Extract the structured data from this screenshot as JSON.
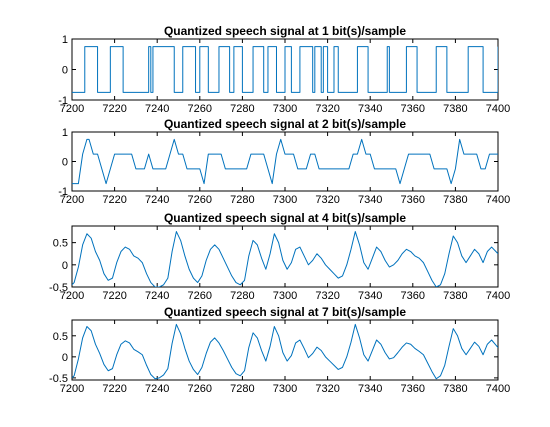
{
  "chart_data": [
    {
      "type": "line",
      "title": "Quantized speech signal at 1 bit(s)/sample",
      "xlabel": "",
      "ylabel": "",
      "xlim": [
        7200,
        7400
      ],
      "ylim": [
        -1,
        1
      ],
      "xticks": [
        7200,
        7220,
        7240,
        7260,
        7280,
        7300,
        7320,
        7340,
        7360,
        7380,
        7400
      ],
      "yticks": [
        -1,
        0,
        1
      ],
      "grid": false,
      "series": [
        {
          "color": "#0072bd",
          "step": true,
          "x": [
            7200,
            7206,
            7212,
            7218,
            7224,
            7236,
            7237,
            7238,
            7248,
            7252,
            7258,
            7260,
            7264,
            7269,
            7274,
            7276,
            7280,
            7285,
            7290,
            7292,
            7296,
            7300,
            7303,
            7307,
            7313,
            7314,
            7317,
            7318,
            7320,
            7323,
            7325,
            7334,
            7339,
            7348,
            7349,
            7357,
            7362,
            7371,
            7376,
            7386,
            7393,
            7400
          ],
          "values": [
            -0.75,
            0.75,
            -0.75,
            0.75,
            -0.75,
            0.75,
            -0.75,
            0.75,
            -0.75,
            0.75,
            -0.75,
            0.75,
            -0.75,
            0.75,
            -0.75,
            0.75,
            -0.75,
            0.75,
            -0.75,
            0.75,
            -0.75,
            0.75,
            -0.75,
            0.75,
            -0.75,
            0.75,
            -0.75,
            0.75,
            -0.75,
            0.75,
            -0.75,
            0.75,
            -0.75,
            0.75,
            -0.75,
            0.75,
            -0.75,
            0.75,
            -0.75,
            0.75,
            -0.75,
            0.75
          ]
        }
      ]
    },
    {
      "type": "line",
      "title": "Quantized speech signal at 2 bit(s)/sample",
      "xlabel": "",
      "ylabel": "",
      "xlim": [
        7200,
        7400
      ],
      "ylim": [
        -1,
        1
      ],
      "xticks": [
        7200,
        7220,
        7240,
        7260,
        7280,
        7300,
        7320,
        7340,
        7360,
        7380,
        7400
      ],
      "yticks": [
        -1,
        0,
        1
      ],
      "grid": false,
      "series": [
        {
          "color": "#0072bd",
          "x": [
            7200,
            7203,
            7205,
            7207,
            7208,
            7210,
            7212,
            7214,
            7216,
            7218,
            7220,
            7222,
            7224,
            7226,
            7228,
            7230,
            7232,
            7234,
            7236,
            7238,
            7240,
            7242,
            7244,
            7246,
            7248,
            7250,
            7252,
            7254,
            7256,
            7258,
            7260,
            7262,
            7264,
            7266,
            7268,
            7270,
            7272,
            7274,
            7276,
            7278,
            7280,
            7282,
            7284,
            7286,
            7288,
            7290,
            7292,
            7294,
            7296,
            7298,
            7300,
            7302,
            7304,
            7306,
            7308,
            7310,
            7312,
            7314,
            7316,
            7318,
            7320,
            7322,
            7324,
            7326,
            7328,
            7330,
            7332,
            7334,
            7336,
            7338,
            7340,
            7342,
            7344,
            7346,
            7348,
            7350,
            7352,
            7354,
            7356,
            7358,
            7360,
            7362,
            7364,
            7366,
            7368,
            7370,
            7372,
            7374,
            7376,
            7378,
            7380,
            7382,
            7384,
            7386,
            7388,
            7390,
            7392,
            7394,
            7396,
            7398,
            7400
          ],
          "values": [
            -0.75,
            -0.75,
            0.25,
            0.75,
            0.75,
            0.25,
            0.25,
            -0.25,
            -0.75,
            -0.25,
            0.25,
            0.25,
            0.25,
            0.25,
            0.25,
            -0.25,
            -0.25,
            -0.25,
            0.25,
            -0.25,
            -0.25,
            -0.25,
            -0.25,
            0.25,
            0.75,
            0.25,
            0.25,
            -0.25,
            -0.25,
            -0.25,
            -0.25,
            -0.75,
            0.25,
            0.25,
            0.25,
            0.25,
            -0.25,
            -0.25,
            -0.25,
            -0.25,
            -0.25,
            -0.25,
            0.25,
            0.25,
            0.25,
            0.25,
            -0.25,
            -0.75,
            0.25,
            0.75,
            0.25,
            0.25,
            0.25,
            -0.25,
            -0.25,
            -0.25,
            0.25,
            0.25,
            -0.25,
            -0.25,
            -0.25,
            -0.25,
            -0.25,
            -0.25,
            -0.25,
            -0.25,
            0.25,
            0.25,
            0.75,
            0.25,
            0.25,
            -0.25,
            -0.25,
            -0.25,
            -0.25,
            -0.25,
            -0.25,
            -0.75,
            -0.25,
            0.25,
            0.25,
            0.25,
            0.25,
            0.25,
            0.25,
            -0.25,
            -0.25,
            -0.25,
            -0.25,
            -0.75,
            -0.25,
            0.75,
            0.25,
            0.25,
            0.25,
            0.25,
            -0.25,
            -0.25,
            0.25,
            0.25,
            0.25
          ]
        }
      ]
    },
    {
      "type": "line",
      "title": "Quantized speech signal at 4 bit(s)/sample",
      "xlabel": "",
      "ylabel": "",
      "xlim": [
        7200,
        7400
      ],
      "ylim": [
        -0.5,
        0.875
      ],
      "xticks": [
        7200,
        7220,
        7240,
        7260,
        7280,
        7300,
        7320,
        7340,
        7360,
        7380,
        7400
      ],
      "yticks": [
        -0.5,
        0,
        0.5
      ],
      "grid": false,
      "series": [
        {
          "color": "#0072bd",
          "x": [
            7200,
            7201,
            7203,
            7205,
            7207,
            7209,
            7211,
            7213,
            7215,
            7217,
            7219,
            7221,
            7223,
            7225,
            7227,
            7229,
            7231,
            7233,
            7235,
            7237,
            7239,
            7241,
            7243,
            7245,
            7247,
            7249,
            7251,
            7253,
            7255,
            7257,
            7259,
            7261,
            7263,
            7265,
            7267,
            7269,
            7271,
            7273,
            7275,
            7277,
            7279,
            7281,
            7283,
            7285,
            7287,
            7289,
            7291,
            7293,
            7295,
            7297,
            7299,
            7301,
            7303,
            7305,
            7307,
            7309,
            7311,
            7313,
            7315,
            7317,
            7319,
            7321,
            7323,
            7325,
            7327,
            7329,
            7331,
            7333,
            7335,
            7337,
            7339,
            7341,
            7343,
            7345,
            7347,
            7349,
            7351,
            7353,
            7355,
            7357,
            7359,
            7361,
            7363,
            7365,
            7367,
            7369,
            7371,
            7373,
            7375,
            7377,
            7379,
            7381,
            7383,
            7385,
            7387,
            7389,
            7391,
            7393,
            7395,
            7397,
            7399,
            7400
          ],
          "values": [
            -0.45,
            -0.4,
            -0.05,
            0.45,
            0.7,
            0.6,
            0.3,
            0.1,
            -0.2,
            -0.35,
            -0.3,
            0.05,
            0.3,
            0.4,
            0.35,
            0.2,
            0.15,
            0.05,
            -0.2,
            -0.4,
            -0.5,
            -0.5,
            -0.45,
            -0.3,
            0.3,
            0.75,
            0.55,
            0.2,
            -0.1,
            -0.3,
            -0.4,
            -0.25,
            0.1,
            0.35,
            0.45,
            0.35,
            0.15,
            -0.05,
            -0.25,
            -0.4,
            -0.45,
            -0.35,
            0.2,
            0.55,
            0.45,
            0.15,
            -0.1,
            0.25,
            0.7,
            0.5,
            0.1,
            -0.1,
            0.05,
            0.35,
            0.4,
            0.2,
            0.0,
            0.1,
            0.25,
            0.15,
            0.0,
            -0.1,
            -0.2,
            -0.3,
            -0.25,
            0.0,
            0.35,
            0.75,
            0.45,
            0.05,
            -0.1,
            0.15,
            0.4,
            0.3,
            0.1,
            -0.05,
            0.0,
            0.1,
            0.25,
            0.35,
            0.3,
            0.2,
            0.15,
            0.05,
            -0.15,
            -0.35,
            -0.5,
            -0.45,
            -0.2,
            0.25,
            0.65,
            0.5,
            0.2,
            0.05,
            0.2,
            0.35,
            0.25,
            0.05,
            0.3,
            0.4,
            0.3,
            0.25
          ]
        }
      ]
    },
    {
      "type": "line",
      "title": "Quantized speech signal at 7 bit(s)/sample",
      "xlabel": "",
      "ylabel": "",
      "xlim": [
        7200,
        7400
      ],
      "ylim": [
        -0.55,
        0.875
      ],
      "xticks": [
        7200,
        7220,
        7240,
        7260,
        7280,
        7300,
        7320,
        7340,
        7360,
        7380,
        7400
      ],
      "yticks": [
        -0.5,
        0,
        0.5
      ],
      "grid": false,
      "series": [
        {
          "color": "#0072bd",
          "x": [
            7200,
            7201,
            7203,
            7205,
            7207,
            7209,
            7211,
            7213,
            7215,
            7217,
            7219,
            7221,
            7223,
            7225,
            7227,
            7229,
            7231,
            7233,
            7235,
            7237,
            7239,
            7241,
            7243,
            7245,
            7247,
            7249,
            7251,
            7253,
            7255,
            7257,
            7259,
            7261,
            7263,
            7265,
            7267,
            7269,
            7271,
            7273,
            7275,
            7277,
            7279,
            7281,
            7283,
            7285,
            7287,
            7289,
            7291,
            7293,
            7295,
            7297,
            7299,
            7301,
            7303,
            7305,
            7307,
            7309,
            7311,
            7313,
            7315,
            7317,
            7319,
            7321,
            7323,
            7325,
            7327,
            7329,
            7331,
            7333,
            7335,
            7337,
            7339,
            7341,
            7343,
            7345,
            7347,
            7349,
            7351,
            7353,
            7355,
            7357,
            7359,
            7361,
            7363,
            7365,
            7367,
            7369,
            7371,
            7373,
            7375,
            7377,
            7379,
            7381,
            7383,
            7385,
            7387,
            7389,
            7391,
            7393,
            7395,
            7397,
            7399,
            7400
          ],
          "values": [
            -0.5,
            -0.45,
            -0.05,
            0.45,
            0.72,
            0.62,
            0.3,
            0.08,
            -0.18,
            -0.33,
            -0.28,
            0.05,
            0.3,
            0.38,
            0.33,
            0.18,
            0.12,
            0.05,
            -0.2,
            -0.42,
            -0.52,
            -0.5,
            -0.43,
            -0.28,
            0.32,
            0.77,
            0.55,
            0.2,
            -0.1,
            -0.3,
            -0.42,
            -0.25,
            0.08,
            0.35,
            0.45,
            0.33,
            0.15,
            -0.05,
            -0.25,
            -0.4,
            -0.45,
            -0.33,
            0.22,
            0.57,
            0.45,
            0.15,
            -0.1,
            0.25,
            0.72,
            0.5,
            0.1,
            -0.1,
            0.03,
            0.33,
            0.4,
            0.2,
            -0.02,
            0.08,
            0.23,
            0.15,
            0.0,
            -0.1,
            -0.2,
            -0.3,
            -0.25,
            0.0,
            0.35,
            0.77,
            0.45,
            0.05,
            -0.1,
            0.15,
            0.4,
            0.3,
            0.1,
            -0.05,
            -0.02,
            0.1,
            0.23,
            0.33,
            0.3,
            0.2,
            0.13,
            0.05,
            -0.15,
            -0.35,
            -0.52,
            -0.45,
            -0.2,
            0.25,
            0.67,
            0.5,
            0.2,
            0.05,
            0.2,
            0.35,
            0.25,
            0.05,
            0.3,
            0.4,
            0.28,
            0.22
          ]
        }
      ]
    }
  ]
}
